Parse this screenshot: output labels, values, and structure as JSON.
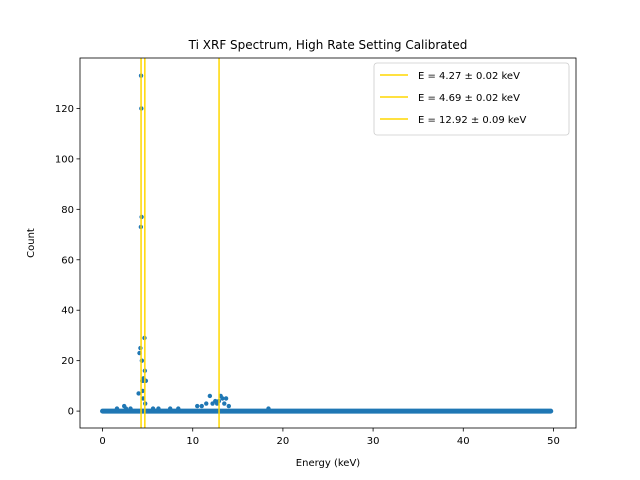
{
  "chart_data": {
    "type": "scatter",
    "title": "Ti XRF Spectrum, High Rate Setting Calibrated",
    "xlabel": "Energy (keV)",
    "ylabel": "Count",
    "xlim": [
      -2.5,
      52.5
    ],
    "ylim": [
      -6.7,
      140
    ],
    "xticks": [
      0,
      10,
      20,
      30,
      40,
      50
    ],
    "yticks": [
      0,
      20,
      40,
      60,
      80,
      100,
      120
    ],
    "grid": false,
    "legend_position": "top-right",
    "colors": {
      "points": "#1f77b4",
      "lines": "#ffd700"
    },
    "baseline": {
      "x_start": 0.0,
      "x_end": 49.7,
      "y": 0
    },
    "series": [
      {
        "kind": "points",
        "x": [
          1.6,
          2.4,
          2.6,
          3.1,
          4.0,
          4.1,
          4.2,
          4.25,
          4.27,
          4.3,
          4.33,
          4.36,
          4.4,
          4.45,
          4.5,
          4.55,
          4.6,
          4.65,
          4.69,
          4.73,
          4.8,
          5.6,
          6.2,
          7.5,
          8.4,
          10.5,
          11.0,
          11.5,
          11.9,
          12.2,
          12.5,
          12.7,
          12.9,
          13.1,
          13.3,
          13.5,
          13.7,
          14.0,
          18.4
        ],
        "y": [
          1,
          2,
          1,
          1,
          7,
          23,
          25,
          73,
          133,
          120,
          77,
          20,
          12,
          8,
          5,
          13,
          12,
          29,
          16,
          3,
          12,
          1,
          1,
          1,
          1,
          2,
          2,
          3,
          6,
          3,
          4,
          3,
          4,
          6,
          5,
          3,
          5,
          2,
          1
        ]
      }
    ],
    "vlines": [
      {
        "x": 4.27,
        "label": "E = 4.27 ± 0.02 keV"
      },
      {
        "x": 4.69,
        "label": "E = 4.69 ± 0.02 keV"
      },
      {
        "x": 12.92,
        "label": "E = 12.92 ± 0.09 keV"
      }
    ]
  }
}
